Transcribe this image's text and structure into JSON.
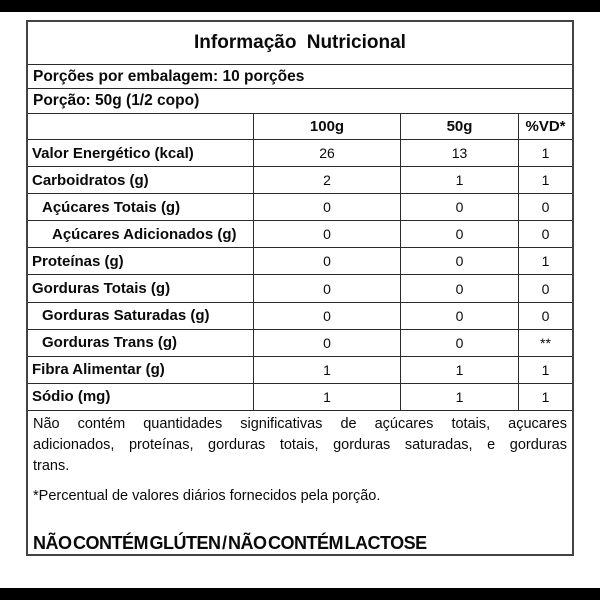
{
  "page": {
    "background": "#ffffff",
    "bar_color": "#000000",
    "outer_border_color": "#444444",
    "inner_border_color": "#2b2b2b",
    "text_color": "#0a0a0a"
  },
  "table": {
    "title": "Informação Nutricional",
    "servings_line": "Porções por embalagem: 10 porções",
    "portion_line": "Porção: 50g (1/2 copo)",
    "columns": [
      "",
      "100g",
      "50g",
      "%VD*"
    ],
    "rows": [
      {
        "label": "Valor Energético (kcal)",
        "indent": 0,
        "values": [
          "26",
          "13",
          "1"
        ]
      },
      {
        "label": "Carboidratos (g)",
        "indent": 0,
        "values": [
          "2",
          "1",
          "1"
        ]
      },
      {
        "label": "Açúcares Totais (g)",
        "indent": 1,
        "values": [
          "0",
          "0",
          "0"
        ]
      },
      {
        "label": "Açúcares Adicionados (g)",
        "indent": 2,
        "values": [
          "0",
          "0",
          "0"
        ]
      },
      {
        "label": "Proteínas (g)",
        "indent": 0,
        "values": [
          "0",
          "0",
          "1"
        ]
      },
      {
        "label": "Gorduras Totais (g)",
        "indent": 0,
        "values": [
          "0",
          "0",
          "0"
        ]
      },
      {
        "label": "Gorduras Saturadas (g)",
        "indent": 1,
        "values": [
          "0",
          "0",
          "0"
        ]
      },
      {
        "label": "Gorduras Trans (g)",
        "indent": 1,
        "values": [
          "0",
          "0",
          "**"
        ]
      },
      {
        "label": "Fibra Alimentar (g)",
        "indent": 0,
        "values": [
          "1",
          "1",
          "1"
        ]
      },
      {
        "label": "Sódio (mg)",
        "indent": 0,
        "values": [
          "1",
          "1",
          "1"
        ]
      }
    ],
    "footnotes": {
      "no_significant_lines": [
        "Não contém quantidades significativas de açúcares totais, açucares",
        "adicionados, proteínas, gorduras totais, gorduras saturadas, e gorduras",
        "trans."
      ],
      "daily_value_note": "*Percentual de valores diários fornecidos pela porção.",
      "claims": "NÃO CONTÉM GLÚTEN / NÃO CONTÉM LACTOSE"
    }
  }
}
